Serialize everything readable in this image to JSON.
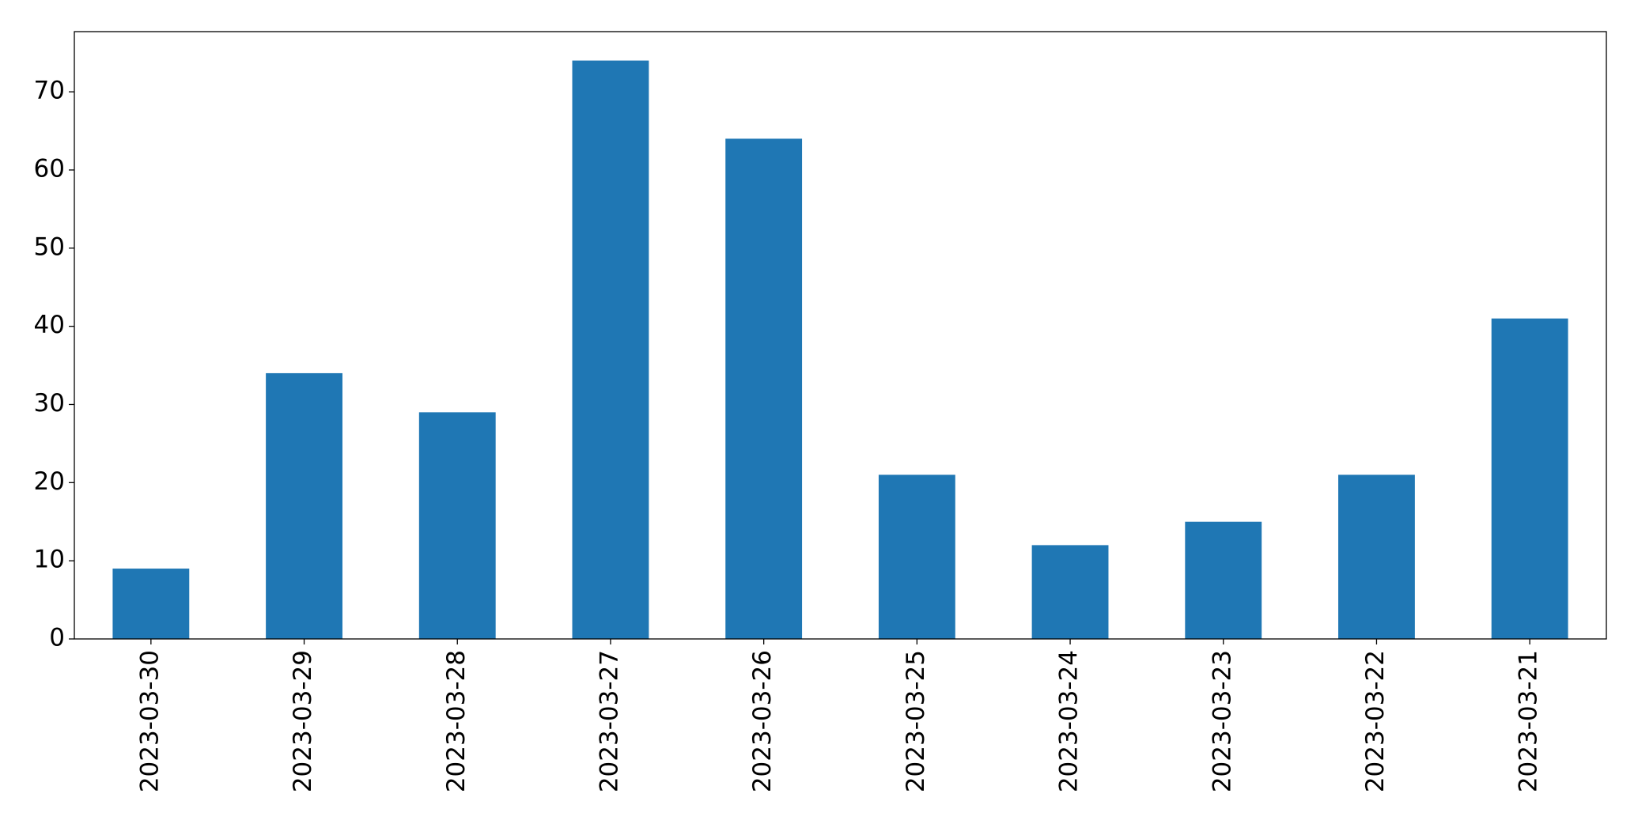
{
  "chart_data": {
    "type": "bar",
    "categories": [
      "2023-03-30",
      "2023-03-29",
      "2023-03-28",
      "2023-03-27",
      "2023-03-26",
      "2023-03-25",
      "2023-03-24",
      "2023-03-23",
      "2023-03-22",
      "2023-03-21"
    ],
    "values": [
      9,
      34,
      29,
      74,
      64,
      21,
      12,
      15,
      21,
      41
    ],
    "color": "#1f77b4",
    "ylim": [
      0,
      77.7
    ],
    "yticks": [
      0,
      10,
      20,
      30,
      40,
      50,
      60,
      70
    ],
    "grid": false
  }
}
